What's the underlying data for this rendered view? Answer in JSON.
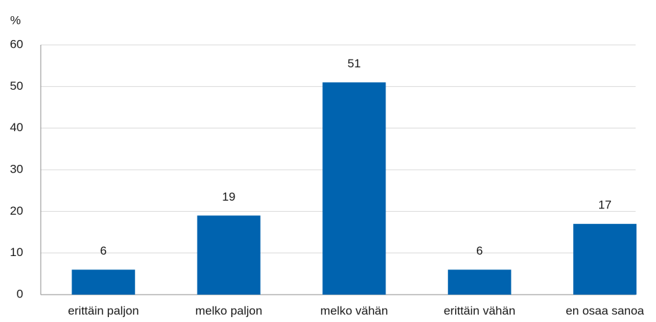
{
  "chart_data": {
    "type": "bar",
    "y_label": "%",
    "categories": [
      "erittäin paljon",
      "melko paljon",
      "melko vähän",
      "erittäin vähän",
      "en osaa sanoa"
    ],
    "values": [
      6,
      19,
      51,
      6,
      17
    ],
    "color": "#0063af",
    "ylim": [
      0,
      60
    ],
    "yticks": [
      0,
      10,
      20,
      30,
      40,
      50,
      60
    ],
    "grid": true
  }
}
